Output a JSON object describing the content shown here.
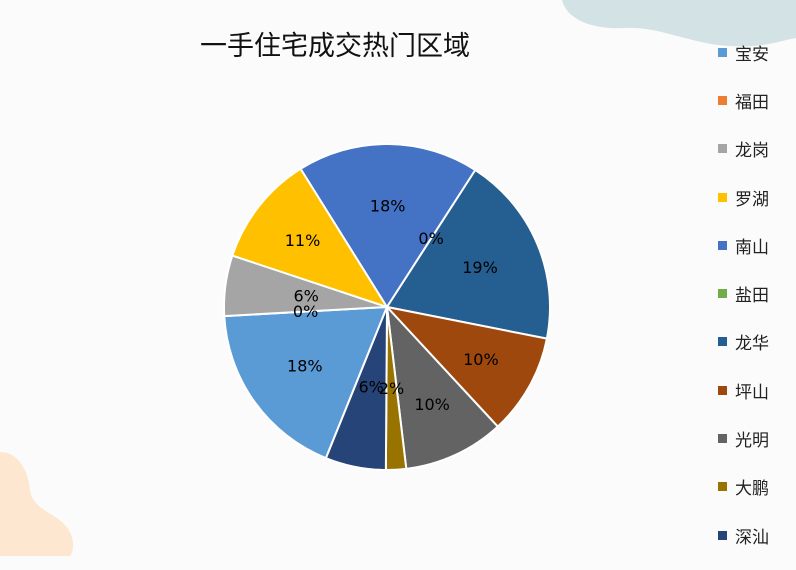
{
  "chart_data": {
    "type": "pie",
    "title": "一手住宅成交热门区域",
    "legend_position": "right",
    "slices": [
      {
        "label": "宝安",
        "value": 18,
        "color": "#5b9bd5"
      },
      {
        "label": "福田",
        "value": 0,
        "color": "#ed7d31"
      },
      {
        "label": "龙岗",
        "value": 6,
        "color": "#a5a5a5"
      },
      {
        "label": "罗湖",
        "value": 11,
        "color": "#ffc000"
      },
      {
        "label": "南山",
        "value": 18,
        "color": "#4472c4"
      },
      {
        "label": "盐田",
        "value": 0,
        "color": "#70ad47"
      },
      {
        "label": "龙华",
        "value": 19,
        "color": "#255e91"
      },
      {
        "label": "坪山",
        "value": 10,
        "color": "#9e480e"
      },
      {
        "label": "光明",
        "value": 10,
        "color": "#636363"
      },
      {
        "label": "大鹏",
        "value": 2,
        "color": "#997300"
      },
      {
        "label": "深汕",
        "value": 6,
        "color": "#264478"
      }
    ]
  }
}
